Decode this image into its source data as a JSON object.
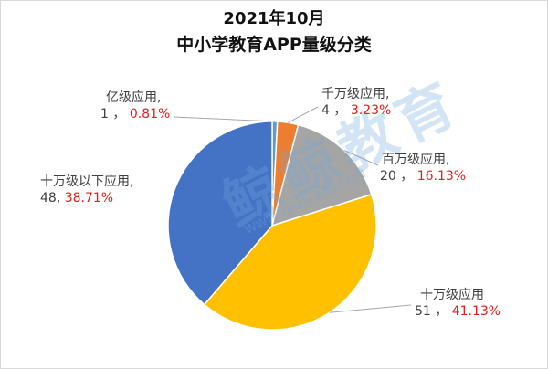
{
  "title_line1": "2021年10月",
  "title_line2": "中小学教育APP量级分类",
  "watermark": {
    "main": "鲸鲸教育",
    "sub": "WWW.Whale Edu.COM"
  },
  "colors": {
    "percent_text": "#e0201c",
    "label_text": "#404040"
  },
  "chart_data": {
    "type": "pie",
    "slices": [
      {
        "name": "亿级应用",
        "value": 1,
        "percent": "0.81%",
        "color": "#5b9bd5"
      },
      {
        "name": "千万级应用",
        "value": 4,
        "percent": "3.23%",
        "color": "#ed7d31"
      },
      {
        "name": "百万级应用",
        "value": 20,
        "percent": "16.13%",
        "color": "#a5a5a5"
      },
      {
        "name": "十万级应用",
        "value": 51,
        "percent": "41.13%",
        "color": "#ffc000"
      },
      {
        "name": "十万级以下应用",
        "value": 48,
        "percent": "38.71%",
        "color": "#4472c4"
      }
    ],
    "label_texts": {
      "yi": {
        "name": "亿级应用,",
        "val": "1 ，",
        "pct": "0.81%"
      },
      "qw": {
        "name": "千万级应用,",
        "val": "4 ，",
        "pct": "3.23%"
      },
      "bw": {
        "name": "百万级应用,",
        "val": "20 ，",
        "pct": "16.13%"
      },
      "sw": {
        "name": "十万级应用",
        "val": "51 ，",
        "pct": "41.13%"
      },
      "sx": {
        "name": "十万级以下应用,",
        "val": "48,",
        "pct": "38.71%"
      }
    }
  }
}
